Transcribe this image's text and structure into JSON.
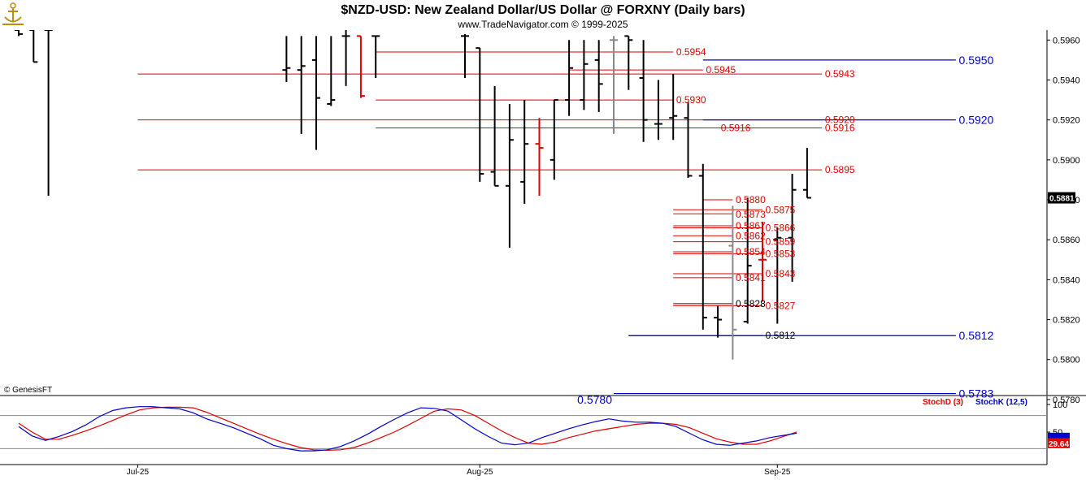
{
  "header": {
    "title": "$NZD-USD:  New Zealand Dollar/US Dollar @ FORXNY  (Daily bars)",
    "subtitle": "www.TradeNavigator.com © 1999-2025",
    "copyright": "© GenesisFT",
    "logo_icon": "anchor-logo-icon"
  },
  "colors": {
    "up": "#000000",
    "down": "#e00000",
    "neutral": "#888888",
    "red_line": "#e00000",
    "blue_line": "#0000cc",
    "stoch_d": "#e00000",
    "stoch_k": "#0000cc"
  },
  "chart_data": [
    {
      "type": "ohlc",
      "title": "$NZD-USD:  New Zealand Dollar/US Dollar @ FORXNY  (Daily bars)",
      "ylim": [
        0.5782,
        0.5965
      ],
      "yticks": [
        "0.5960",
        "0.5940",
        "0.5920",
        "0.5900",
        "0.5880",
        "0.5860",
        "0.5840",
        "0.5820",
        "0.5800",
        "0.5780"
      ],
      "xtick_labels": [
        {
          "label": "Jul-25",
          "index": 8
        },
        {
          "label": "Aug-25",
          "index": 31
        },
        {
          "label": "Sep-25",
          "index": 51
        }
      ],
      "last_price": "0.5881",
      "bars": [
        {
          "o": 0.5965,
          "h": 0.5965,
          "l": 0.5962,
          "c": 0.5963,
          "col": "up"
        },
        {
          "o": 0.5965,
          "h": 0.5965,
          "l": 0.5949,
          "c": 0.5949,
          "col": "up"
        },
        {
          "o": 0.5965,
          "h": 0.5965,
          "l": 0.5882,
          "c": 0.5965,
          "col": "up"
        },
        null,
        null,
        null,
        null,
        null,
        null,
        null,
        null,
        null,
        null,
        null,
        null,
        null,
        null,
        null,
        {
          "o": 0.5945,
          "h": 0.5962,
          "l": 0.5939,
          "c": 0.5946,
          "col": "up"
        },
        {
          "o": 0.5945,
          "h": 0.5962,
          "l": 0.5913,
          "c": 0.5947,
          "col": "up"
        },
        {
          "o": 0.595,
          "h": 0.5962,
          "l": 0.5905,
          "c": 0.5931,
          "col": "up"
        },
        {
          "o": 0.5928,
          "h": 0.5962,
          "l": 0.5927,
          "c": 0.593,
          "col": "up"
        },
        {
          "o": 0.5962,
          "h": 0.5965,
          "l": 0.5937,
          "c": 0.5962,
          "col": "up"
        },
        {
          "o": 0.5962,
          "h": 0.5962,
          "l": 0.5931,
          "c": 0.5932,
          "col": "down"
        },
        {
          "o": 0.5962,
          "h": 0.5962,
          "l": 0.5941,
          "c": 0.5962,
          "col": "up"
        },
        null,
        null,
        null,
        null,
        null,
        {
          "o": 0.5962,
          "h": 0.5963,
          "l": 0.5941,
          "c": 0.5962,
          "col": "up"
        },
        {
          "o": 0.5956,
          "h": 0.5956,
          "l": 0.5889,
          "c": 0.5893,
          "col": "up"
        },
        {
          "o": 0.5894,
          "h": 0.5937,
          "l": 0.5887,
          "c": 0.5887,
          "col": "up"
        },
        {
          "o": 0.5887,
          "h": 0.5928,
          "l": 0.5856,
          "c": 0.591,
          "col": "up"
        },
        {
          "o": 0.5889,
          "h": 0.593,
          "l": 0.5878,
          "c": 0.5908,
          "col": "up"
        },
        {
          "o": 0.5908,
          "h": 0.5921,
          "l": 0.5882,
          "c": 0.5906,
          "col": "down"
        },
        {
          "o": 0.59,
          "h": 0.593,
          "l": 0.589,
          "c": 0.593,
          "col": "up"
        },
        {
          "o": 0.593,
          "h": 0.596,
          "l": 0.5922,
          "c": 0.5946,
          "col": "up"
        },
        {
          "o": 0.593,
          "h": 0.596,
          "l": 0.5925,
          "c": 0.5948,
          "col": "up"
        },
        {
          "o": 0.595,
          "h": 0.596,
          "l": 0.5924,
          "c": 0.5938,
          "col": "up"
        },
        {
          "o": 0.596,
          "h": 0.5962,
          "l": 0.5913,
          "c": 0.596,
          "col": "neutral"
        },
        {
          "o": 0.5962,
          "h": 0.5962,
          "l": 0.5935,
          "c": 0.596,
          "col": "up"
        },
        {
          "o": 0.5941,
          "h": 0.596,
          "l": 0.5909,
          "c": 0.592,
          "col": "up"
        },
        {
          "o": 0.5918,
          "h": 0.594,
          "l": 0.591,
          "c": 0.5918,
          "col": "up"
        },
        {
          "o": 0.5921,
          "h": 0.5943,
          "l": 0.591,
          "c": 0.5922,
          "col": "up"
        },
        {
          "o": 0.5921,
          "h": 0.5929,
          "l": 0.5891,
          "c": 0.5892,
          "col": "up"
        },
        {
          "o": 0.5892,
          "h": 0.5898,
          "l": 0.5815,
          "c": 0.5821,
          "col": "up"
        },
        {
          "o": 0.5821,
          "h": 0.5827,
          "l": 0.5811,
          "c": 0.582,
          "col": "up"
        },
        {
          "o": 0.5857,
          "h": 0.5877,
          "l": 0.58,
          "c": 0.5815,
          "col": "neutral"
        },
        {
          "o": 0.5819,
          "h": 0.5881,
          "l": 0.5818,
          "c": 0.5847,
          "col": "up"
        },
        {
          "o": 0.585,
          "h": 0.5869,
          "l": 0.5829,
          "c": 0.585,
          "col": "down"
        },
        {
          "o": 0.586,
          "h": 0.5866,
          "l": 0.5818,
          "c": 0.5861,
          "col": "up"
        },
        {
          "o": 0.5861,
          "h": 0.5893,
          "l": 0.5839,
          "c": 0.5885,
          "col": "up"
        },
        {
          "o": 0.5885,
          "h": 0.5906,
          "l": 0.5881,
          "c": 0.5881,
          "col": "up"
        }
      ],
      "levels": [
        {
          "y": 0.5954,
          "label": "0.5954",
          "color": "red",
          "x1": 24,
          "x2": 44,
          "label_at": 44.2
        },
        {
          "y": 0.5945,
          "label": "0.5945",
          "color": "red",
          "x1": 37,
          "x2": 46,
          "label_at": 46.2,
          "above": true
        },
        {
          "y": 0.5943,
          "label": "0.5943",
          "color": "red",
          "x1": 8,
          "x2": 54,
          "label_at": 54.2
        },
        {
          "y": 0.593,
          "label": "0.5930",
          "color": "red",
          "x1": 24,
          "x2": 44,
          "label_at": 44.2
        },
        {
          "y": 0.592,
          "label": "0.5920",
          "color": "red",
          "x1": 8,
          "x2": 54,
          "label_at": 54.2
        },
        {
          "y": 0.5916,
          "label": "0.5916",
          "color": "red",
          "x1": 24,
          "x2": 54,
          "label_at": 54.2
        },
        {
          "y": 0.5916,
          "label": "0.5916",
          "color": "red",
          "x1": 37,
          "x2": 47,
          "label_at": 47.2,
          "above": true
        },
        {
          "y": 0.5895,
          "label": "0.5895",
          "color": "red",
          "x1": 8,
          "x2": 54,
          "label_at": 54.2
        },
        {
          "y": 0.588,
          "label": "0.5880",
          "color": "red",
          "x1": 46,
          "x2": 48,
          "label_at": 48.2
        },
        {
          "y": 0.5875,
          "label": "0.5875",
          "color": "red",
          "x1": 44,
          "x2": 50,
          "label_at": 50.2
        },
        {
          "y": 0.5873,
          "label": "0.5873",
          "color": "red",
          "x1": 44,
          "x2": 48,
          "label_at": 48.2,
          "below": true
        },
        {
          "y": 0.5867,
          "label": "0.5867",
          "color": "red",
          "x1": 44,
          "x2": 48,
          "label_at": 48.2
        },
        {
          "y": 0.5866,
          "label": "0.5866",
          "color": "red",
          "x1": 44,
          "x2": 50,
          "label_at": 50.2
        },
        {
          "y": 0.5862,
          "label": "0.5862",
          "color": "red",
          "x1": 44,
          "x2": 48,
          "label_at": 48.2
        },
        {
          "y": 0.5859,
          "label": "0.5859",
          "color": "red",
          "x1": 44,
          "x2": 50,
          "label_at": 50.2
        },
        {
          "y": 0.5854,
          "label": "0.5854",
          "color": "red",
          "x1": 44,
          "x2": 48,
          "label_at": 48.2
        },
        {
          "y": 0.5853,
          "label": "0.5853",
          "color": "red",
          "x1": 44,
          "x2": 50,
          "label_at": 50.2
        },
        {
          "y": 0.5843,
          "label": "0.5843",
          "color": "red",
          "x1": 44,
          "x2": 50,
          "label_at": 50.2
        },
        {
          "y": 0.5841,
          "label": "0.5841",
          "color": "red",
          "x1": 44,
          "x2": 48,
          "label_at": 48.2
        },
        {
          "y": 0.5828,
          "label": "0.5828",
          "color": "dark",
          "x1": 44,
          "x2": 48,
          "label_at": 48.2
        },
        {
          "y": 0.5827,
          "label": "0.5827",
          "color": "red",
          "x1": 44,
          "x2": 50,
          "label_at": 50.2
        },
        {
          "y": 0.5812,
          "label": "0.5812",
          "color": "dark",
          "x1": 41,
          "x2": 50,
          "label_at": 50.2
        },
        {
          "y": 0.595,
          "label": "0.5950",
          "color": "blue",
          "x1": 46,
          "x2": 63,
          "label_at": 63.2
        },
        {
          "y": 0.592,
          "label": "0.5920",
          "color": "blue",
          "x1": 46,
          "x2": 63,
          "label_at": 63.2
        },
        {
          "y": 0.5812,
          "label": "0.5812",
          "color": "blue",
          "x1": 41,
          "x2": 63,
          "label_at": 63.2
        },
        {
          "y": 0.5783,
          "label": "0.5783",
          "color": "blue",
          "x1": 40,
          "x2": 63,
          "label_at": 63.2
        },
        {
          "y": 0.578,
          "label": "0.5780",
          "color": "blue",
          "x1": 40,
          "x2": 63,
          "label_left": true
        }
      ]
    },
    {
      "type": "line",
      "title": "",
      "ylim": [
        0,
        100
      ],
      "yticks": [
        "100",
        "50"
      ],
      "last_value": "29.64",
      "series": [
        {
          "name": "StochD (3)",
          "color": "red",
          "values": [
            66,
            50,
            37,
            37,
            44,
            52,
            61,
            71,
            81,
            90,
            94,
            95,
            95,
            94,
            86,
            76,
            66,
            56,
            46,
            37,
            29,
            22,
            18,
            17,
            18,
            22,
            30,
            40,
            50,
            62,
            75,
            88,
            92,
            90,
            80,
            66,
            52,
            40,
            30,
            28,
            32,
            40,
            46,
            52,
            56,
            60,
            64,
            66,
            66,
            64,
            58,
            48,
            38,
            32,
            28,
            28,
            34,
            42,
            50
          ]
        },
        {
          "name": "StochK (12,5)",
          "color": "blue",
          "values": [
            60,
            43,
            35,
            42,
            51,
            63,
            78,
            89,
            94,
            96,
            96,
            94,
            92,
            85,
            74,
            66,
            58,
            48,
            38,
            26,
            20,
            16,
            16,
            18,
            24,
            34,
            46,
            60,
            73,
            85,
            94,
            93,
            88,
            72,
            56,
            42,
            30,
            27,
            30,
            40,
            48,
            56,
            63,
            69,
            74,
            70,
            68,
            68,
            66,
            60,
            48,
            36,
            28,
            26,
            30,
            34,
            40,
            44,
            48
          ]
        }
      ]
    }
  ]
}
